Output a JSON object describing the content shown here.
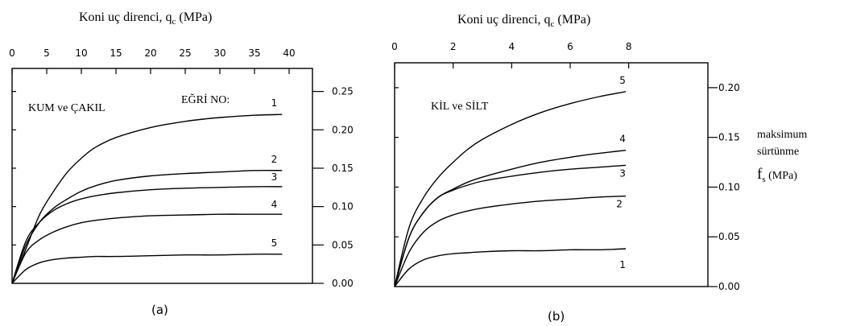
{
  "chart_data": [
    {
      "type": "line",
      "caption": "(a)",
      "title": "Koni uç direnci, q",
      "title_sub": "c",
      "title_unit": " (MPa)",
      "panel_label": "KUM ve ÇAKIL",
      "curve_label": "EĞRİ NO:",
      "x_ticks": [
        0,
        5,
        10,
        15,
        20,
        25,
        30,
        35,
        40
      ],
      "xlim": [
        0,
        40
      ],
      "y_ticks": [
        "0.00",
        "0.05",
        "0.10",
        "0.15",
        "0.20",
        "0.25"
      ],
      "ylim": [
        0,
        0.28
      ],
      "series": [
        {
          "name": "1",
          "x": [
            0,
            2,
            4,
            6,
            8,
            10,
            12,
            15,
            20,
            25,
            30,
            35,
            39
          ],
          "y": [
            0,
            0.045,
            0.09,
            0.12,
            0.145,
            0.163,
            0.177,
            0.19,
            0.203,
            0.211,
            0.216,
            0.219,
            0.22
          ]
        },
        {
          "name": "2",
          "x": [
            0,
            2,
            4,
            6,
            8,
            10,
            12,
            15,
            20,
            25,
            30,
            35,
            39
          ],
          "y": [
            0,
            0.05,
            0.08,
            0.098,
            0.11,
            0.12,
            0.127,
            0.134,
            0.14,
            0.143,
            0.145,
            0.147,
            0.147
          ]
        },
        {
          "name": "3",
          "x": [
            0,
            2,
            4,
            6,
            8,
            10,
            12,
            15,
            20,
            25,
            30,
            35,
            39
          ],
          "y": [
            0,
            0.055,
            0.08,
            0.095,
            0.104,
            0.11,
            0.114,
            0.118,
            0.122,
            0.124,
            0.125,
            0.126,
            0.126
          ]
        },
        {
          "name": "4",
          "x": [
            0,
            2,
            4,
            6,
            8,
            10,
            12,
            15,
            20,
            25,
            30,
            35,
            39
          ],
          "y": [
            0,
            0.04,
            0.057,
            0.067,
            0.074,
            0.079,
            0.082,
            0.085,
            0.088,
            0.089,
            0.09,
            0.09,
            0.09
          ]
        },
        {
          "name": "5",
          "x": [
            0,
            2,
            4,
            6,
            8,
            10,
            12,
            15,
            20,
            25,
            30,
            35,
            39
          ],
          "y": [
            0,
            0.018,
            0.027,
            0.031,
            0.033,
            0.034,
            0.035,
            0.035,
            0.036,
            0.037,
            0.037,
            0.038,
            0.038
          ]
        }
      ]
    },
    {
      "type": "line",
      "caption": "(b)",
      "title": "Koni uç direnci, q",
      "title_sub": "c",
      "title_unit": " (MPa)",
      "panel_label": "KİL ve SİLT",
      "x_ticks": [
        0,
        2,
        4,
        6,
        8
      ],
      "xlim": [
        0,
        9
      ],
      "y_ticks": [
        "0.00",
        "0.05",
        "0.10",
        "0.15",
        "0.20"
      ],
      "ylim": [
        0,
        0.225
      ],
      "ylabel_line1": "maksimum",
      "ylabel_line2": "sürtünme",
      "ylabel_sym": "f",
      "ylabel_sub": "s",
      "ylabel_unit": " (MPa)",
      "series": [
        {
          "name": "5",
          "x": [
            0,
            0.5,
            1,
            1.5,
            2,
            2.5,
            3,
            4,
            5,
            6,
            7,
            7.9
          ],
          "y": [
            0,
            0.06,
            0.09,
            0.11,
            0.125,
            0.138,
            0.148,
            0.163,
            0.175,
            0.184,
            0.191,
            0.196
          ]
        },
        {
          "name": "4",
          "x": [
            0,
            0.5,
            1,
            1.5,
            2,
            2.5,
            3,
            4,
            5,
            6,
            7,
            7.9
          ],
          "y": [
            0,
            0.05,
            0.075,
            0.09,
            0.098,
            0.105,
            0.11,
            0.118,
            0.125,
            0.13,
            0.134,
            0.137
          ]
        },
        {
          "name": "3",
          "x": [
            0,
            0.5,
            1,
            1.5,
            2,
            2.5,
            3,
            4,
            5,
            6,
            7,
            7.9
          ],
          "y": [
            0,
            0.05,
            0.075,
            0.09,
            0.097,
            0.102,
            0.106,
            0.111,
            0.115,
            0.118,
            0.12,
            0.122
          ]
        },
        {
          "name": "2",
          "x": [
            0,
            0.5,
            1,
            1.5,
            2,
            2.5,
            3,
            4,
            5,
            6,
            7,
            7.9
          ],
          "y": [
            0,
            0.035,
            0.055,
            0.066,
            0.072,
            0.076,
            0.079,
            0.083,
            0.086,
            0.088,
            0.09,
            0.091
          ]
        },
        {
          "name": "1",
          "x": [
            0,
            0.5,
            1,
            1.5,
            2,
            2.5,
            3,
            4,
            5,
            6,
            7,
            7.9
          ],
          "y": [
            0,
            0.018,
            0.027,
            0.031,
            0.033,
            0.034,
            0.035,
            0.036,
            0.036,
            0.037,
            0.037,
            0.038
          ]
        }
      ]
    }
  ]
}
